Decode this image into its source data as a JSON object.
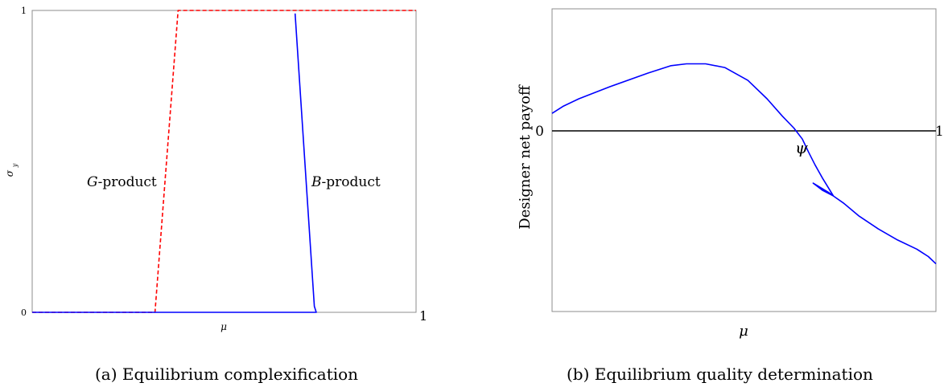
{
  "chart_data": [
    {
      "panel_label": "(a)",
      "caption": "Equilibrium complexification",
      "type": "line",
      "xlabel": "μ",
      "ylabel": "σ_y",
      "xlim": [
        0,
        1
      ],
      "ylim": [
        0,
        1
      ],
      "x_tick_labels": [
        "1"
      ],
      "y_tick_labels": [
        "0",
        "1"
      ],
      "series": [
        {
          "name": "G-product",
          "label_prefix": "G",
          "label_suffix": "-product",
          "style": "dashed",
          "color": "#ff0000",
          "points": [
            [
              0,
              0
            ],
            [
              0.32,
              0
            ],
            [
              0.38,
              1
            ],
            [
              1,
              1
            ]
          ]
        },
        {
          "name": "B-product",
          "label_prefix": "B",
          "label_suffix": "-product",
          "style": "solid",
          "color": "#0000ff",
          "points": [
            [
              0,
              0
            ],
            [
              0.74,
              0
            ],
            [
              0.735,
              0.02
            ],
            [
              0.685,
              0.99
            ]
          ]
        }
      ],
      "grid": false
    },
    {
      "panel_label": "(b)",
      "caption": "Equilibrium quality determination",
      "type": "line",
      "xlabel": "μ",
      "ylabel": "Designer net payoff",
      "xlim": [
        0,
        1
      ],
      "ylim": [
        -1,
        0.65
      ],
      "y_tick_labels": [
        "0"
      ],
      "x_end_label": "1",
      "point_label": "ψ",
      "zero_line": true,
      "series": [
        {
          "color": "#0000ff",
          "style": "solid",
          "points": [
            [
              0.0,
              0.08
            ],
            [
              0.03,
              0.12
            ],
            [
              0.07,
              0.16
            ],
            [
              0.15,
              0.225
            ],
            [
              0.25,
              0.3
            ],
            [
              0.31,
              0.34
            ],
            [
              0.35,
              0.35
            ],
            [
              0.4,
              0.35
            ],
            [
              0.45,
              0.33
            ],
            [
              0.51,
              0.26
            ],
            [
              0.56,
              0.16
            ],
            [
              0.6,
              0.065
            ],
            [
              0.63,
              0.0
            ],
            [
              0.652,
              -0.06
            ],
            [
              0.668,
              -0.13
            ],
            [
              0.685,
              -0.2
            ],
            [
              0.705,
              -0.275
            ],
            [
              0.733,
              -0.37
            ],
            [
              0.72,
              -0.35
            ],
            [
              0.7,
              -0.325
            ],
            [
              0.68,
              -0.3
            ],
            [
              0.705,
              -0.34
            ],
            [
              0.733,
              -0.37
            ],
            [
              0.76,
              -0.41
            ],
            [
              0.8,
              -0.48
            ],
            [
              0.85,
              -0.55
            ],
            [
              0.9,
              -0.61
            ],
            [
              0.95,
              -0.66
            ],
            [
              0.98,
              -0.7
            ],
            [
              1.0,
              -0.74
            ]
          ]
        }
      ],
      "grid": false
    }
  ]
}
